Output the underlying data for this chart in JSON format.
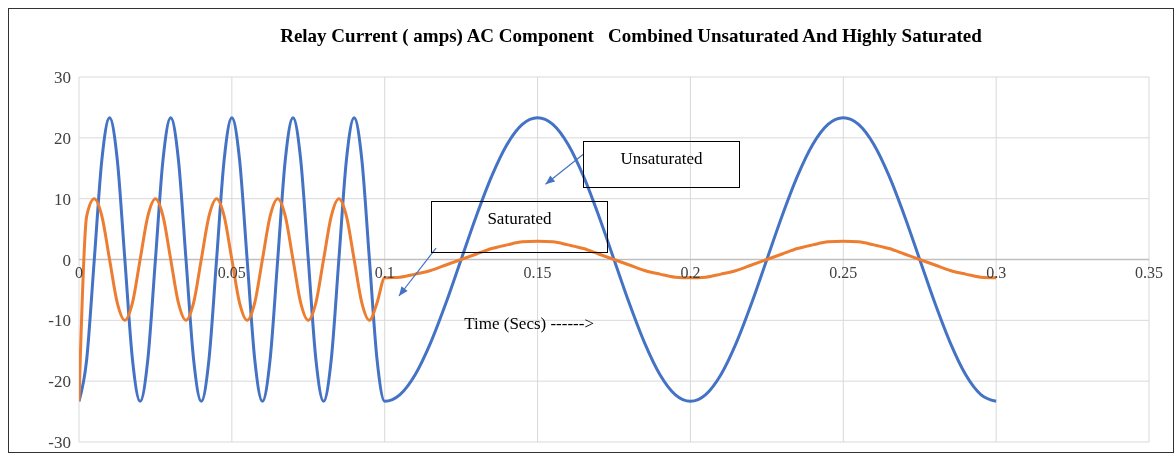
{
  "chart_data": {
    "type": "line",
    "title": "Relay Current ( amps) AC Component   Combined Unsaturated And Highly Saturated",
    "xlabel": "Time (Secs) ------>",
    "x": [
      0,
      0.0025,
      0.005,
      0.0075,
      0.01,
      0.0125,
      0.015,
      0.0175,
      0.02,
      0.0225,
      0.025,
      0.0275,
      0.03,
      0.0325,
      0.035,
      0.0375,
      0.04,
      0.0425,
      0.045,
      0.0475,
      0.05,
      0.0525,
      0.055,
      0.0575,
      0.06,
      0.0625,
      0.065,
      0.0675,
      0.07,
      0.0725,
      0.075,
      0.0775,
      0.08,
      0.0825,
      0.085,
      0.0875,
      0.09,
      0.0925,
      0.095,
      0.0975,
      0.1,
      0.105,
      0.11,
      0.115,
      0.12,
      0.125,
      0.13,
      0.135,
      0.14,
      0.145,
      0.15,
      0.155,
      0.16,
      0.165,
      0.17,
      0.175,
      0.18,
      0.185,
      0.19,
      0.195,
      0.2,
      0.205,
      0.21,
      0.215,
      0.22,
      0.225,
      0.23,
      0.235,
      0.24,
      0.245,
      0.25,
      0.255,
      0.26,
      0.265,
      0.27,
      0.275,
      0.28,
      0.285,
      0.29,
      0.295,
      0.3
    ],
    "series": [
      {
        "name": null,
        "color": "#4472c4",
        "values": [
          -23.3,
          -16.5,
          0,
          16.5,
          23.3,
          16.5,
          0,
          -16.5,
          -23.3,
          -16.5,
          0,
          16.5,
          23.3,
          16.5,
          0,
          -16.5,
          -23.3,
          -16.5,
          0,
          16.5,
          23.3,
          16.5,
          0,
          -16.5,
          -23.3,
          -16.5,
          0,
          16.5,
          23.3,
          16.5,
          0,
          -16.5,
          -23.3,
          -16.5,
          0,
          16.5,
          23.3,
          16.5,
          0,
          -16.5,
          -23.3,
          -22.2,
          -18.9,
          -13.7,
          -7.2,
          0,
          7.2,
          13.7,
          18.9,
          22.2,
          23.3,
          22.2,
          18.9,
          13.7,
          7.2,
          0,
          -7.2,
          -13.7,
          -18.9,
          -22.2,
          -23.3,
          -22.2,
          -18.9,
          -13.7,
          -7.2,
          0,
          7.2,
          13.7,
          18.9,
          22.2,
          23.3,
          22.2,
          18.9,
          13.7,
          7.2,
          0,
          -7.2,
          -13.7,
          -18.9,
          -22.2,
          -23.3
        ]
      },
      {
        "name": null,
        "color": "#ed7d31",
        "values": [
          -23.3,
          7.1,
          10,
          7.1,
          0,
          -7.1,
          -10,
          -7.1,
          0,
          7.1,
          10,
          7.1,
          0,
          -7.1,
          -10,
          -7.1,
          0,
          7.1,
          10,
          7.1,
          0,
          -7.1,
          -10,
          -7.1,
          0,
          7.1,
          10,
          7.1,
          0,
          -7.1,
          -10,
          -7.1,
          0,
          7.1,
          10,
          7.1,
          0,
          -7.1,
          -10,
          -7.1,
          -3,
          -2.9,
          -2.4,
          -1.8,
          -0.9,
          0,
          0.9,
          1.8,
          2.4,
          2.9,
          3,
          2.9,
          2.4,
          1.8,
          0.9,
          0,
          -0.9,
          -1.8,
          -2.4,
          -2.9,
          -3,
          -2.9,
          -2.4,
          -1.8,
          -0.9,
          0,
          0.9,
          1.8,
          2.4,
          2.9,
          3,
          2.9,
          2.4,
          1.8,
          0.9,
          0,
          -0.9,
          -1.8,
          -2.4,
          -2.9,
          -3
        ]
      }
    ],
    "xlim": [
      0,
      0.35
    ],
    "xticks": [
      0,
      0.05,
      0.1,
      0.15,
      0.2,
      0.25,
      0.3,
      0.35
    ],
    "ylim": [
      -30,
      30
    ],
    "yticks": [
      -30,
      -20,
      -10,
      0,
      10,
      20,
      30
    ],
    "grid": true,
    "marker": "none",
    "line_style": "solid",
    "annotations": [
      "Unsaturated",
      "Saturated"
    ]
  }
}
